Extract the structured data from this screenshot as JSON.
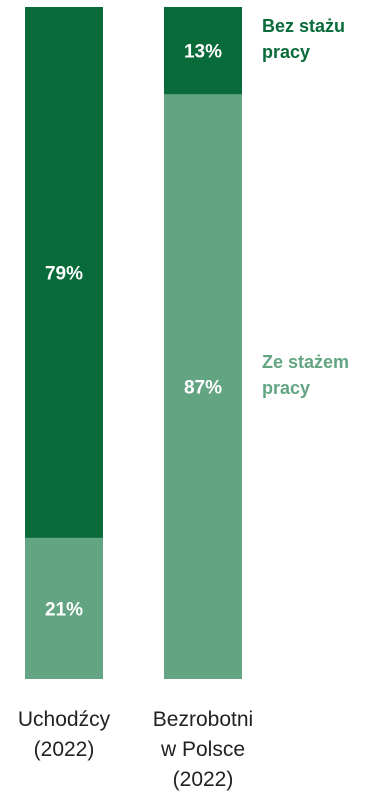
{
  "chart_data": {
    "type": "bar",
    "stacked": true,
    "normalized_percent": true,
    "categories": [
      "Uchodźcy\n(2022)",
      "Bezrobotni\nw Polsce\n(2022)"
    ],
    "series": [
      {
        "name": "Ze stażem pracy",
        "values": [
          21,
          87
        ],
        "labels": [
          "21%",
          "87%"
        ],
        "color": "#63a583"
      },
      {
        "name": "Bez stażu pracy",
        "values": [
          79,
          13
        ],
        "labels": [
          "79%",
          "13%"
        ],
        "color": "#086b39"
      }
    ],
    "legend": {
      "placement": "right-inline",
      "entries": [
        {
          "series": "Bez stażu pracy",
          "lines": [
            "Bez stażu",
            "pracy"
          ],
          "color": "#086b39"
        },
        {
          "series": "Ze stażem pracy",
          "lines": [
            "Ze stażem",
            "pracy"
          ],
          "color": "#63a583"
        }
      ]
    },
    "ylim": [
      0,
      100
    ],
    "grid": false,
    "xlabel": "",
    "ylabel": ""
  }
}
